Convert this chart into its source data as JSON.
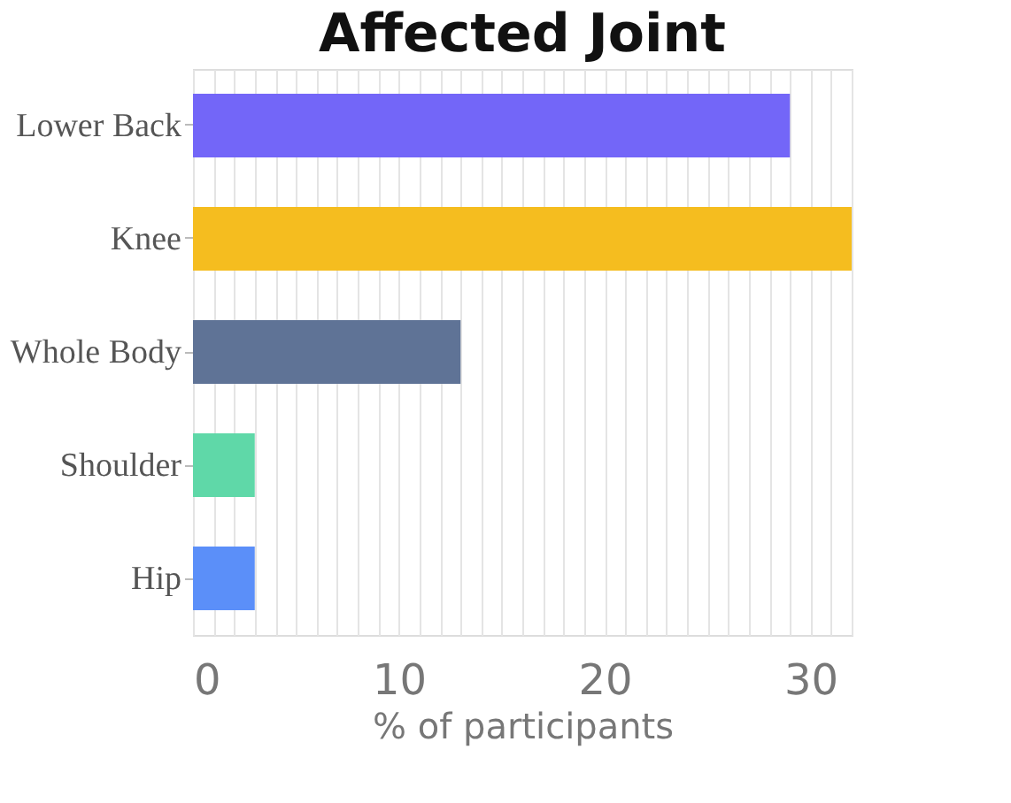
{
  "chart_data": {
    "type": "bar",
    "orientation": "horizontal",
    "title": "Affected Joint",
    "xlabel": "% of participants",
    "categories": [
      "Lower Back",
      "Knee",
      "Whole Body",
      "Shoulder",
      "Hip"
    ],
    "values": [
      29,
      32,
      13,
      3,
      3
    ],
    "colors": [
      "#7366f8",
      "#f5bd1f",
      "#5f7396",
      "#5fd8a8",
      "#5b8ff9"
    ],
    "xlim": [
      0,
      32
    ],
    "xticks": [
      0,
      {
        "value": 1,
        "label": null
      },
      {
        "value": 2,
        "label": null
      },
      {
        "value": 3,
        "label": null
      },
      {
        "value": 4,
        "label": null
      },
      {
        "value": 5,
        "label": null
      },
      {
        "value": 6,
        "label": null
      },
      {
        "value": 7,
        "label": null
      },
      {
        "value": 8,
        "label": null
      },
      {
        "value": 9,
        "label": null
      },
      10,
      {
        "value": 11,
        "label": null
      },
      {
        "value": 12,
        "label": null
      },
      {
        "value": 13,
        "label": null
      },
      {
        "value": 14,
        "label": null
      },
      {
        "value": 15,
        "label": null
      },
      {
        "value": 16,
        "label": null
      },
      {
        "value": 17,
        "label": null
      },
      {
        "value": 18,
        "label": null
      },
      {
        "value": 19,
        "label": null
      },
      20,
      {
        "value": 21,
        "label": null
      },
      {
        "value": 22,
        "label": null
      },
      {
        "value": 23,
        "label": null
      },
      {
        "value": 24,
        "label": null
      },
      {
        "value": 25,
        "label": null
      },
      {
        "value": 26,
        "label": null
      },
      {
        "value": 27,
        "label": null
      },
      {
        "value": 28,
        "label": null
      },
      {
        "value": 29,
        "label": null
      },
      30,
      {
        "value": 31,
        "label": null
      },
      {
        "value": 32,
        "label": null
      }
    ],
    "grid": "x",
    "legend": false
  }
}
